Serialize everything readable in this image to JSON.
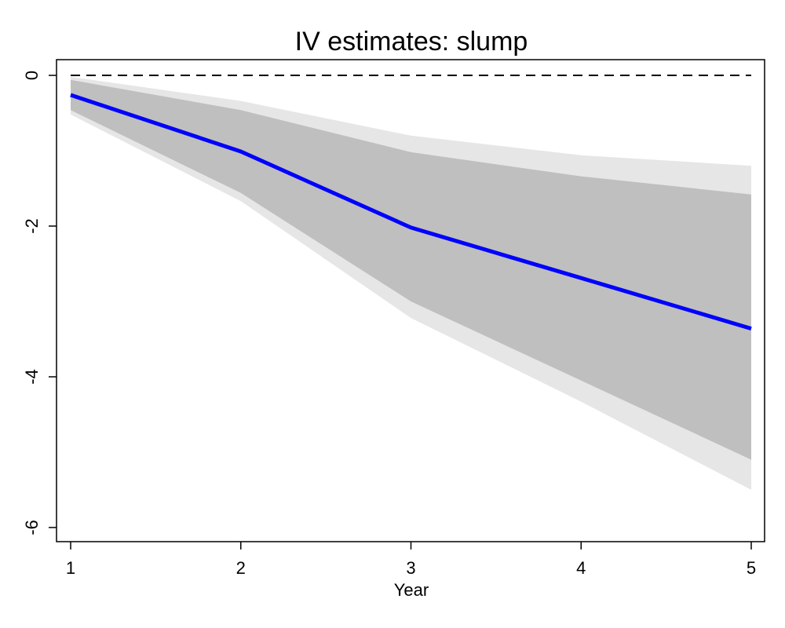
{
  "chart_data": {
    "type": "line",
    "title": "IV estimates: slump",
    "xlabel": "Year",
    "ylabel": "",
    "x": [
      1,
      2,
      3,
      4,
      5
    ],
    "xlim": [
      1,
      5
    ],
    "ylim": [
      -6,
      0
    ],
    "x_ticks": [
      "1",
      "2",
      "3",
      "4",
      "5"
    ],
    "y_ticks": [
      "0",
      "-2",
      "-4",
      "-6"
    ],
    "grid": false,
    "legend": "none",
    "series": [
      {
        "values": [
          -0.26,
          -1.01,
          -2.02,
          -2.69,
          -3.36
        ],
        "color": "#0000ff"
      }
    ],
    "bands": [
      {
        "lower": [
          -0.52,
          -1.67,
          -3.22,
          -4.33,
          -5.5
        ],
        "upper": [
          -0.02,
          -0.34,
          -0.8,
          -1.06,
          -1.2
        ],
        "color": "#e6e6e6"
      },
      {
        "lower": [
          -0.46,
          -1.56,
          -3.0,
          -4.05,
          -5.1
        ],
        "upper": [
          -0.06,
          -0.46,
          -1.02,
          -1.34,
          -1.58
        ],
        "color": "#bfbfbf"
      }
    ],
    "reference_line": {
      "y": 0,
      "style": "dashed",
      "color": "#000000"
    }
  }
}
